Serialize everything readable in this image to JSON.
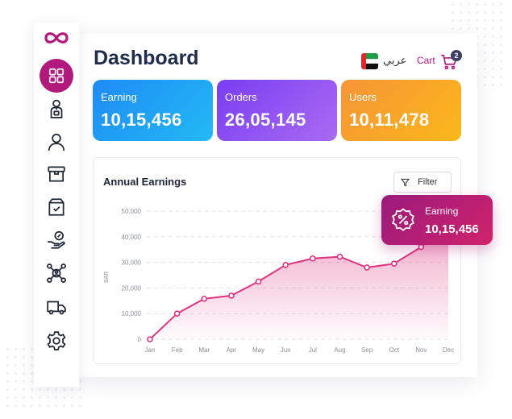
{
  "header": {
    "title": "Dashboard",
    "language": "عربي",
    "cart_label": "Cart",
    "cart_count": "2"
  },
  "sidebar": {
    "items": [
      {
        "icon": "dashboard-grid-icon",
        "active": true
      },
      {
        "icon": "employee-icon"
      },
      {
        "icon": "user-icon"
      },
      {
        "icon": "store-icon"
      },
      {
        "icon": "order-box-icon"
      },
      {
        "icon": "payment-hand-icon"
      },
      {
        "icon": "network-icon"
      },
      {
        "icon": "delivery-truck-icon"
      },
      {
        "icon": "settings-icon"
      }
    ]
  },
  "cards": {
    "earning": {
      "label": "Earning",
      "value": "10,15,456"
    },
    "orders": {
      "label": "Orders",
      "value": "26,05,145"
    },
    "users": {
      "label": "Users",
      "value": "10,11,478"
    }
  },
  "chart": {
    "filter_label": "Filter"
  },
  "popup": {
    "label": "Earning",
    "value": "10,15,456",
    "icon": "discount-badge-icon"
  },
  "colors": {
    "accent": "#b1197c",
    "line": "#e0337f",
    "earning": "#1f8bf6",
    "orders": "#7a3df2",
    "users": "#f59437"
  },
  "chart_data": {
    "type": "area",
    "title": "Annual Earnings",
    "xlabel": "",
    "ylabel": "SAR",
    "categories": [
      "Jan",
      "Feb",
      "Mar",
      "Apr",
      "May",
      "Jun",
      "Jul",
      "Aug",
      "Sep",
      "Oct",
      "Nov",
      "Dec"
    ],
    "values": [
      0,
      10000,
      15800,
      17000,
      22500,
      29000,
      31500,
      32200,
      28000,
      29500,
      36000,
      45000
    ],
    "ylim": [
      0,
      50000
    ],
    "yticks": [
      0,
      10000,
      20000,
      30000,
      40000,
      50000
    ],
    "ytick_labels": [
      "0",
      "10,000",
      "20,000",
      "30,000",
      "40,000",
      "50,000"
    ],
    "grid": true,
    "legend": "none"
  }
}
